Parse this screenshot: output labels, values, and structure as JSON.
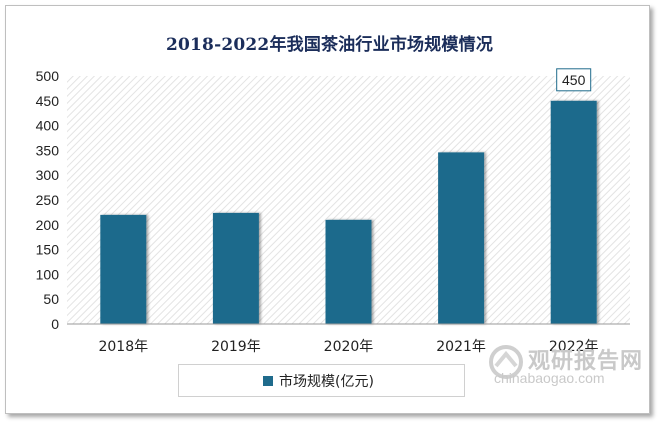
{
  "chart_data": {
    "type": "bar",
    "title": "2018-2022年我国茶油行业市场规模情况",
    "categories": [
      "2018年",
      "2019年",
      "2020年",
      "2021年",
      "2022年"
    ],
    "series": [
      {
        "name": "市场规模(亿元)",
        "values": [
          220,
          224,
          210,
          346,
          450
        ],
        "color": "#1f6b8c"
      }
    ],
    "ylim": [
      0,
      500
    ],
    "yticks": [
      0,
      50,
      100,
      150,
      200,
      250,
      300,
      350,
      400,
      450,
      500
    ],
    "data_labels": [
      null,
      null,
      null,
      null,
      "450"
    ],
    "legend_position": "bottom",
    "grid": false,
    "plot_background": "diagonal-hatch"
  },
  "watermark": {
    "cn": "观研报告网",
    "en": "chinabaogao.com"
  }
}
